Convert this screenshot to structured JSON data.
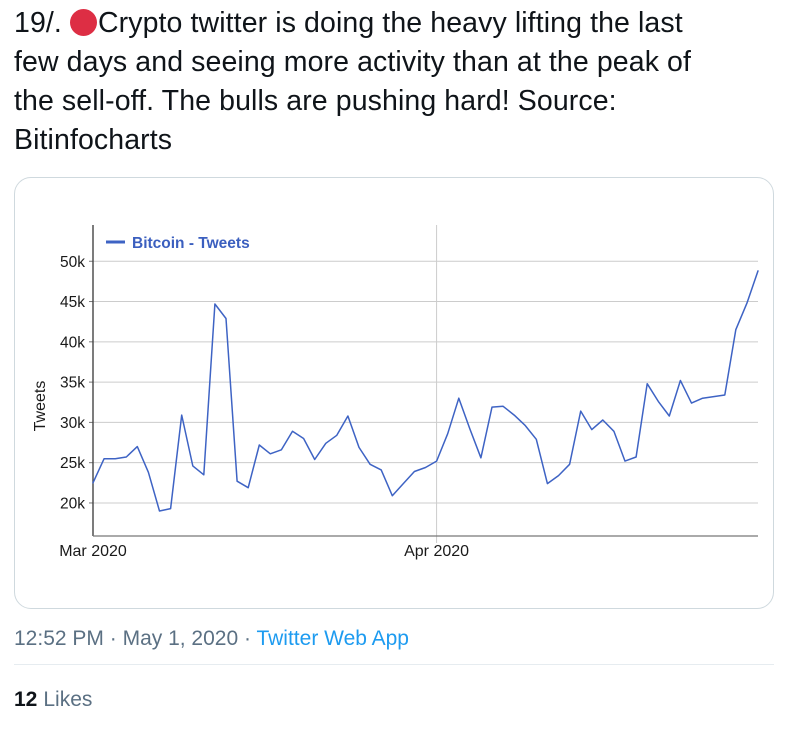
{
  "tweet": {
    "lines": [
      {
        "prefix": "19/. ",
        "emoji": "red-circle",
        "text": "Crypto twitter is doing the heavy lifting the last"
      },
      {
        "text": "few days and seeing more activity than at the peak of"
      },
      {
        "text": "the sell-off. The bulls are pushing hard! Source:"
      },
      {
        "text": "Bitinfocharts"
      }
    ]
  },
  "footer": {
    "time": "12:52 PM",
    "separator1": "·",
    "date": "May 1, 2020",
    "separator2": "·",
    "source_app": "Twitter Web App"
  },
  "stats": {
    "like_count": "12",
    "like_label": "Likes"
  },
  "colors": {
    "text_primary": "#0f1419",
    "text_secondary": "#5b7083",
    "link_blue": "#1d9bf0",
    "emoji_red": "#dd2e44",
    "card_border": "#cfd9de",
    "chart_line_blue": "#3E63C4",
    "chart_legend_blue": "#3B5FBF",
    "gridline_gray": "#cccccc",
    "axis_gray": "#777777",
    "chart_text": "#1a1a1a"
  },
  "chart_data": {
    "type": "line",
    "title": "",
    "legend": "Bitcoin - Tweets",
    "legend_position": "top-left",
    "grid": true,
    "ylabel": "Tweets",
    "xlabel": "",
    "x_start": "Mar 1, 2020",
    "x_end": "Apr 30, 2020",
    "x_tick_labels": [
      "Mar 2020",
      "Apr 2020"
    ],
    "x_tick_indices": [
      0,
      31
    ],
    "y_ticks": [
      20000,
      25000,
      30000,
      35000,
      40000,
      45000,
      50000
    ],
    "y_tick_labels": [
      "20k",
      "25k",
      "30k",
      "35k",
      "40k",
      "45k",
      "50k"
    ],
    "ylim": [
      15900,
      54500
    ],
    "series": [
      {
        "name": "Bitcoin - Tweets",
        "color": "#3E63C4",
        "values": [
          22500,
          25500,
          25500,
          25700,
          27000,
          23800,
          19000,
          19300,
          30900,
          24600,
          23500,
          44700,
          42900,
          22700,
          21900,
          27200,
          26100,
          26600,
          28900,
          28000,
          25400,
          27400,
          28400,
          30800,
          26900,
          24800,
          24100,
          20900,
          22400,
          23900,
          24400,
          25200,
          28600,
          33000,
          29200,
          25600,
          31900,
          32000,
          30900,
          29600,
          27900,
          22400,
          23400,
          24800,
          31400,
          29100,
          30300,
          28900,
          25200,
          25700,
          34800,
          32600,
          30800,
          35200,
          32400,
          33000,
          33200,
          33400,
          41500,
          44800,
          48800
        ]
      }
    ]
  }
}
